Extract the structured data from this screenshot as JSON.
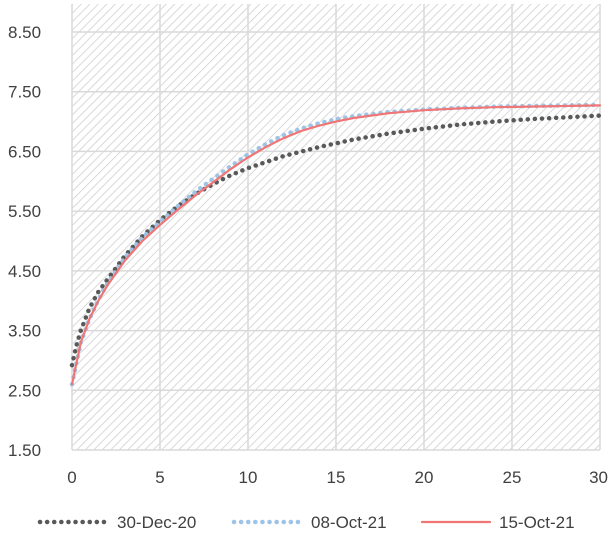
{
  "chart_data": {
    "type": "line",
    "title": "",
    "xlabel": "",
    "ylabel": "",
    "xlim": [
      0,
      30
    ],
    "ylim": [
      1.5,
      8.5
    ],
    "x_ticks": [
      "0",
      "5",
      "10",
      "15",
      "20",
      "25",
      "30"
    ],
    "y_ticks": [
      "1.50",
      "2.50",
      "3.50",
      "4.50",
      "5.50",
      "6.50",
      "7.50",
      "8.50"
    ],
    "grid": true,
    "legend_position": "bottom",
    "series": [
      {
        "name": "30-Dec-20",
        "style": "dotted",
        "color": "#595959",
        "x": [
          0,
          0.25,
          0.5,
          1,
          1.5,
          2,
          3,
          4,
          5,
          6,
          7,
          8,
          9,
          10,
          12,
          14,
          16,
          18,
          20,
          22,
          24,
          26,
          28,
          30
        ],
        "y": [
          2.92,
          3.25,
          3.5,
          3.88,
          4.15,
          4.35,
          4.75,
          5.08,
          5.35,
          5.58,
          5.78,
          5.95,
          6.1,
          6.22,
          6.42,
          6.57,
          6.7,
          6.8,
          6.88,
          6.95,
          7.0,
          7.04,
          7.07,
          7.1
        ]
      },
      {
        "name": "08-Oct-21",
        "style": "dotted",
        "color": "#9dc3e6",
        "x": [
          0,
          0.5,
          1,
          1.5,
          2,
          3,
          4,
          5,
          6,
          7,
          8,
          9,
          10,
          11,
          12,
          13,
          14,
          15,
          16,
          18,
          20,
          22,
          24,
          26,
          28,
          30
        ],
        "y": [
          2.6,
          3.3,
          3.7,
          4.02,
          4.28,
          4.72,
          5.06,
          5.32,
          5.58,
          5.82,
          6.04,
          6.25,
          6.45,
          6.62,
          6.77,
          6.88,
          6.97,
          7.04,
          7.09,
          7.16,
          7.2,
          7.23,
          7.25,
          7.26,
          7.27,
          7.28
        ]
      },
      {
        "name": "15-Oct-21",
        "style": "solid",
        "color": "#f07575",
        "x": [
          0,
          0.5,
          1,
          1.5,
          2,
          3,
          4,
          5,
          6,
          7,
          8,
          9,
          10,
          11,
          12,
          13,
          14,
          15,
          16,
          18,
          20,
          22,
          24,
          26,
          28,
          30
        ],
        "y": [
          2.6,
          3.3,
          3.7,
          4.0,
          4.25,
          4.67,
          5.0,
          5.27,
          5.52,
          5.76,
          5.98,
          6.2,
          6.4,
          6.57,
          6.72,
          6.84,
          6.93,
          7.0,
          7.06,
          7.14,
          7.19,
          7.22,
          7.24,
          7.25,
          7.26,
          7.27
        ]
      }
    ]
  }
}
